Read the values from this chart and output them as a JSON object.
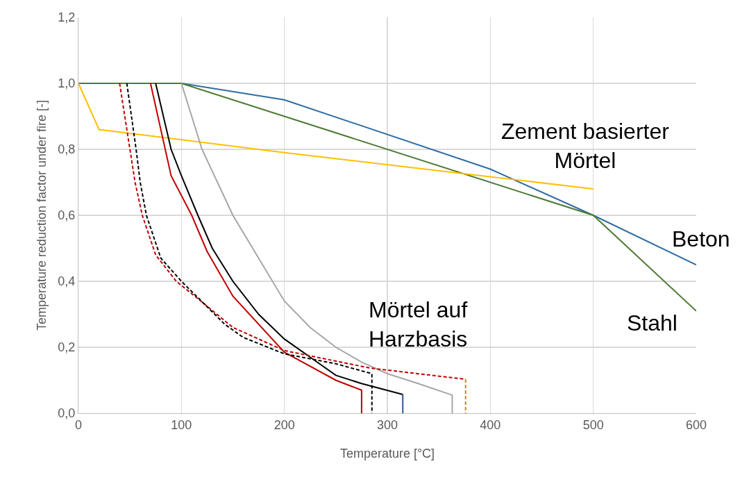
{
  "chart_data": {
    "type": "line",
    "xlabel": "Temperature [°C]",
    "ylabel": "Temperature reduction factor under fire [-]",
    "xlim": [
      0,
      600
    ],
    "xticks": [
      0,
      100,
      200,
      300,
      400,
      500,
      600
    ],
    "ylim": [
      0,
      1.2
    ],
    "yticks": [
      {
        "value": 0,
        "label": "0,0"
      },
      {
        "value": 0.2,
        "label": "0,2"
      },
      {
        "value": 0.4,
        "label": "0,4"
      },
      {
        "value": 0.6,
        "label": "0,6"
      },
      {
        "value": 0.8,
        "label": "0,8"
      },
      {
        "value": 1,
        "label": "1,0"
      },
      {
        "value": 1.2,
        "label": "1,2"
      }
    ],
    "grid": true,
    "marker": "none",
    "series": [
      {
        "color": "#2e6da4",
        "x": [
          0,
          100,
          200,
          400,
          500,
          600
        ],
        "values": [
          1,
          1,
          0.95,
          0.74,
          0.6,
          0.45
        ]
      },
      {
        "color": "#4f7a34",
        "x": [
          0,
          100,
          500,
          600
        ],
        "values": [
          1,
          1,
          0.6,
          0.31
        ]
      },
      {
        "color": "#ffc000",
        "x": [
          0,
          20,
          200,
          500
        ],
        "values": [
          1,
          0.86,
          0.79,
          0.68
        ]
      },
      {
        "color": "#a6a6a6",
        "x": [
          100,
          110,
          120,
          135,
          150,
          175,
          200,
          225,
          250,
          275,
          300,
          330,
          363,
          363
        ],
        "values": [
          1,
          0.9,
          0.8,
          0.7,
          0.6,
          0.47,
          0.34,
          0.26,
          0.2,
          0.155,
          0.12,
          0.09,
          0.055,
          0
        ]
      },
      {
        "color": "#000000",
        "x": [
          75,
          90,
          100,
          116,
          130,
          150,
          175,
          200,
          225,
          250,
          275,
          315
        ],
        "values": [
          1,
          0.8,
          0.72,
          0.6,
          0.5,
          0.4,
          0.3,
          0.225,
          0.17,
          0.115,
          0.09,
          0.057
        ]
      },
      {
        "color": "#2f5597",
        "x": [
          315,
          315
        ],
        "values": [
          0.057,
          0
        ]
      },
      {
        "color": "#c00000",
        "x": [
          70,
          90,
          110,
          125,
          150,
          200,
          250,
          275,
          275
        ],
        "values": [
          1,
          0.72,
          0.6,
          0.49,
          0.355,
          0.185,
          0.1,
          0.07,
          0
        ]
      },
      {
        "color": "#c00000",
        "line_style": "dashed",
        "x": [
          40,
          50,
          55,
          62,
          75,
          95,
          115,
          150,
          200,
          283,
          376
        ],
        "values": [
          1,
          0.8,
          0.7,
          0.6,
          0.48,
          0.4,
          0.35,
          0.26,
          0.19,
          0.137,
          0.103
        ]
      },
      {
        "color": "#bf9000",
        "line_style": "dashed",
        "x": [
          376,
          376
        ],
        "values": [
          0.103,
          0
        ]
      },
      {
        "color": "#000000",
        "line_style": "dashed",
        "x": [
          47,
          56,
          60,
          66,
          80,
          100,
          142,
          160,
          200,
          250,
          285,
          285
        ],
        "values": [
          1,
          0.8,
          0.7,
          0.6,
          0.47,
          0.4,
          0.27,
          0.23,
          0.18,
          0.15,
          0.12,
          0
        ]
      }
    ],
    "annotations": [
      "Zement basierter\nMörtel",
      "Beton",
      "Stahl",
      "Mörtel auf\nHarzbasis"
    ]
  }
}
